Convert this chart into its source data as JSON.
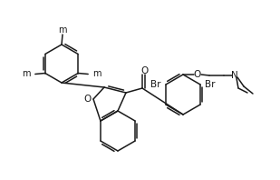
{
  "bg": "#ffffff",
  "lc": "#1a1a1a",
  "lw": 1.1,
  "fs": 7.0,
  "fsa": 7.5,
  "figsize": [
    3.05,
    1.94
  ],
  "dpi": 100
}
